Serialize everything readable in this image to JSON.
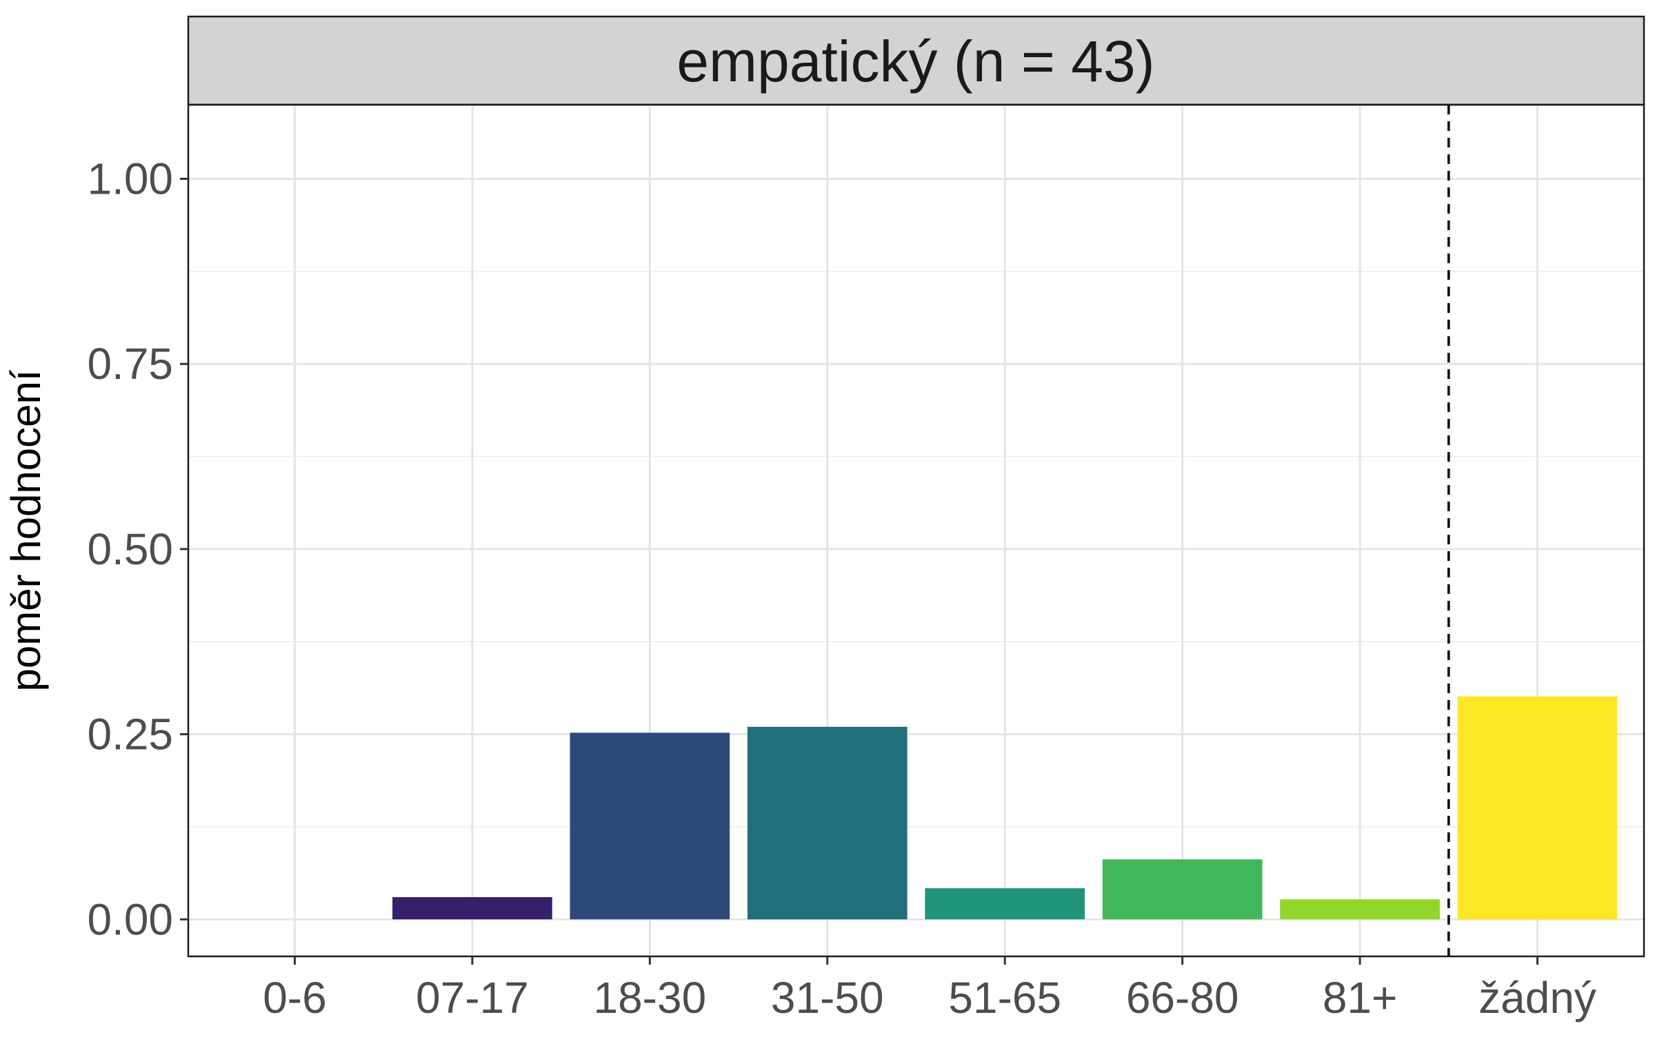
{
  "chart_data": {
    "type": "bar",
    "title": "empatický (n = 43)",
    "xlabel": "",
    "ylabel": "poměr hodnocení",
    "categories": [
      "0-6",
      "07-17",
      "18-30",
      "31-50",
      "51-65",
      "66-80",
      "81+",
      "žádný"
    ],
    "values": [
      0.0,
      0.03,
      0.252,
      0.26,
      0.042,
      0.081,
      0.027,
      0.301
    ],
    "bar_colors": [
      "#440154",
      "#36206C",
      "#2B4A7A",
      "#216E7C",
      "#20957A",
      "#40B85A",
      "#92D629",
      "#FDE725"
    ],
    "ylim": [
      -0.05,
      1.1
    ],
    "yticks": [
      "0.00",
      "0.25",
      "0.50",
      "0.75",
      "1.00"
    ],
    "ytick_values": [
      0,
      0.25,
      0.5,
      0.75,
      1.0
    ],
    "grid": true,
    "legend": "none",
    "reference_line": {
      "style": "dashed",
      "between": [
        "81+",
        "žádný"
      ]
    },
    "strip_color": "#D3D3D3"
  }
}
